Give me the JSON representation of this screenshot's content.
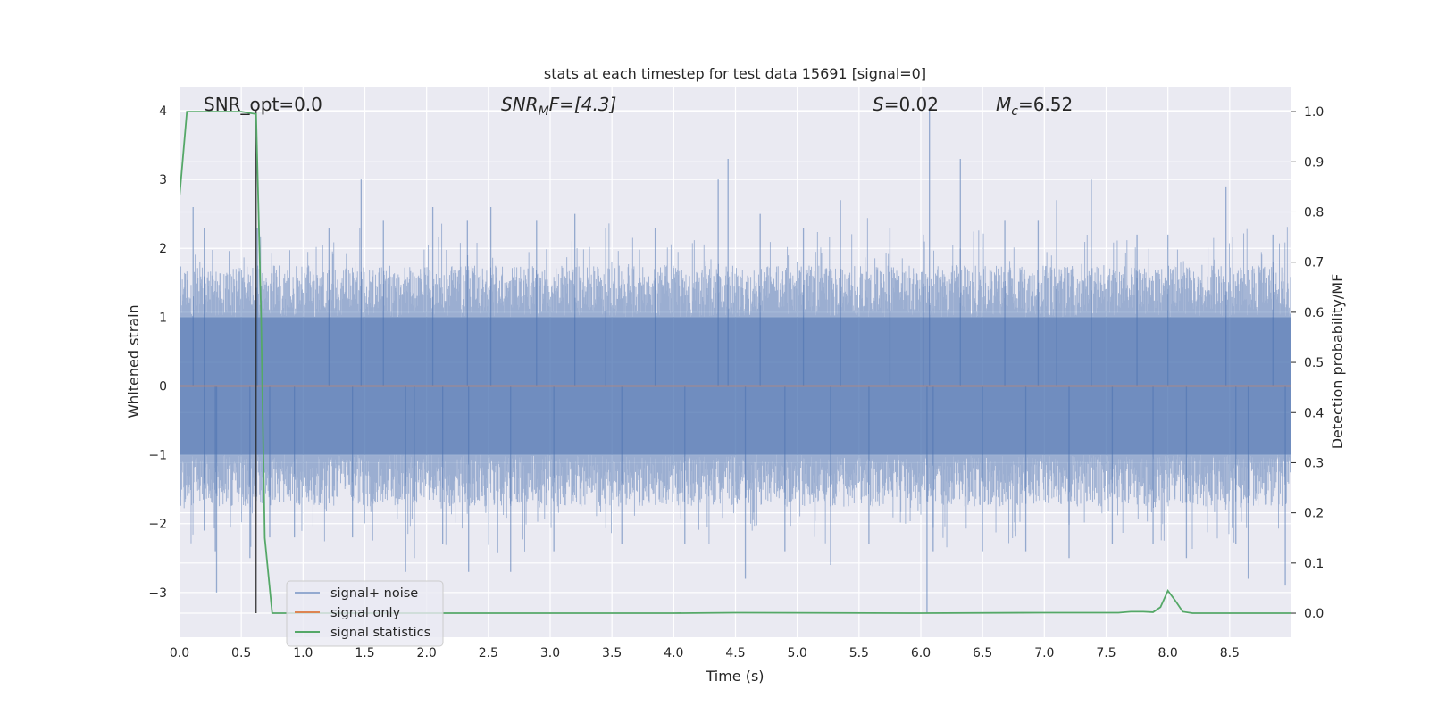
{
  "chart_data": {
    "type": "line",
    "title": "stats at each timestep for test data 15691 [signal=0]",
    "xlabel": "Time (s)",
    "ylabel_left": "Whitened strain",
    "ylabel_right": "Detection probability/MF",
    "xlim": [
      0.0,
      9.0
    ],
    "ylim_left": [
      -3.65,
      4.35
    ],
    "ylim_right": [
      -0.048,
      1.05
    ],
    "x_ticks": [
      "0.0",
      "0.5",
      "1.0",
      "1.5",
      "2.0",
      "2.5",
      "3.0",
      "3.5",
      "4.0",
      "4.5",
      "5.0",
      "5.5",
      "6.0",
      "6.5",
      "7.0",
      "7.5",
      "8.0",
      "8.5"
    ],
    "x_tick_values": [
      0.0,
      0.5,
      1.0,
      1.5,
      2.0,
      2.5,
      3.0,
      3.5,
      4.0,
      4.5,
      5.0,
      5.5,
      6.0,
      6.5,
      7.0,
      7.5,
      8.0,
      8.5
    ],
    "y_left_ticks": [
      "−3",
      "−2",
      "−1",
      "0",
      "1",
      "2",
      "3",
      "4"
    ],
    "y_left_tick_values": [
      -3,
      -2,
      -1,
      0,
      1,
      2,
      3,
      4
    ],
    "y_right_ticks": [
      "0.0",
      "0.1",
      "0.2",
      "0.3",
      "0.4",
      "0.5",
      "0.6",
      "0.7",
      "0.8",
      "0.9",
      "1.0"
    ],
    "y_right_tick_values": [
      0.0,
      0.1,
      0.2,
      0.3,
      0.4,
      0.5,
      0.6,
      0.7,
      0.8,
      0.9,
      1.0
    ],
    "grid": true,
    "legend_position": "lower-left",
    "annotations": {
      "snr_opt": "SNR_opt=0.0",
      "snr_mf_base": "SNR",
      "snr_mf_sub": "M",
      "snr_mf_rest": "F=[4.3]",
      "stat_s_italic": "S",
      "stat_s_rest": "=0.02",
      "mc_base": "M",
      "mc_sub": "c",
      "mc_rest": "=6.52"
    },
    "series": [
      {
        "name": "signal+ noise",
        "axis": "left",
        "color": "#4c72b0",
        "style": "dense noise trace (~9000 samples), amplitude mostly within ±1.8, peaks: 4.0 at t≈6.07, 3.3 at t≈4.44, 3.3 at t≈6.32, −3.3 at t≈6.05, −2.8 at t≈4.58"
      },
      {
        "name": "signal only",
        "axis": "left",
        "color": "#dd8452",
        "x": [
          0.0,
          9.0
        ],
        "y": [
          0.0,
          0.0
        ]
      },
      {
        "name": "signal statistics",
        "axis": "right",
        "color": "#55a868",
        "x": [
          0.0,
          0.06,
          0.12,
          0.5,
          0.62,
          0.66,
          0.69,
          0.75,
          1.0,
          2.0,
          4.0,
          4.5,
          6.0,
          7.0,
          7.6,
          7.7,
          7.8,
          7.88,
          7.94,
          8.0,
          8.06,
          8.12,
          8.2,
          8.5,
          9.0
        ],
        "y": [
          0.83,
          1.0,
          1.0,
          1.0,
          0.995,
          0.6,
          0.15,
          0.0,
          0.0,
          0.0,
          0.0,
          0.001,
          0.0,
          0.001,
          0.001,
          0.003,
          0.003,
          0.002,
          0.012,
          0.045,
          0.025,
          0.003,
          0.0,
          0.0,
          0.0
        ]
      }
    ],
    "vertical_marker": {
      "x": 0.62,
      "y_range": [
        -3.3,
        4.0
      ],
      "color": "#262626"
    },
    "noise_peaks": [
      {
        "t": 0.11,
        "v": 2.6
      },
      {
        "t": 0.2,
        "v": 2.3
      },
      {
        "t": 0.2,
        "v": -2.1
      },
      {
        "t": 0.29,
        "v": -2.4
      },
      {
        "t": 0.3,
        "v": -3.0
      },
      {
        "t": 0.57,
        "v": -2.5
      },
      {
        "t": 0.63,
        "v": 2.3
      },
      {
        "t": 0.73,
        "v": -2.2
      },
      {
        "t": 0.93,
        "v": -2.2
      },
      {
        "t": 1.21,
        "v": 2.3
      },
      {
        "t": 1.4,
        "v": -2.2
      },
      {
        "t": 1.47,
        "v": 3.0
      },
      {
        "t": 1.65,
        "v": 2.4
      },
      {
        "t": 1.83,
        "v": -2.7
      },
      {
        "t": 1.9,
        "v": -2.5
      },
      {
        "t": 2.05,
        "v": 2.6
      },
      {
        "t": 2.13,
        "v": -2.3
      },
      {
        "t": 2.33,
        "v": 2.4
      },
      {
        "t": 2.34,
        "v": -2.7
      },
      {
        "t": 2.52,
        "v": 2.6
      },
      {
        "t": 2.68,
        "v": -2.7
      },
      {
        "t": 2.89,
        "v": 2.4
      },
      {
        "t": 3.03,
        "v": -2.4
      },
      {
        "t": 3.2,
        "v": 2.5
      },
      {
        "t": 3.45,
        "v": 2.3
      },
      {
        "t": 3.58,
        "v": -2.3
      },
      {
        "t": 3.85,
        "v": 2.3
      },
      {
        "t": 4.09,
        "v": -2.3
      },
      {
        "t": 4.36,
        "v": 3.0
      },
      {
        "t": 4.44,
        "v": 3.3
      },
      {
        "t": 4.58,
        "v": -2.8
      },
      {
        "t": 4.7,
        "v": 2.5
      },
      {
        "t": 4.9,
        "v": -2.4
      },
      {
        "t": 5.05,
        "v": 2.3
      },
      {
        "t": 5.27,
        "v": -2.6
      },
      {
        "t": 5.35,
        "v": 2.7
      },
      {
        "t": 5.58,
        "v": -2.3
      },
      {
        "t": 5.75,
        "v": 2.3
      },
      {
        "t": 6.02,
        "v": 2.2
      },
      {
        "t": 6.05,
        "v": -3.3
      },
      {
        "t": 6.07,
        "v": 4.0
      },
      {
        "t": 6.1,
        "v": -2.4
      },
      {
        "t": 6.32,
        "v": 3.3
      },
      {
        "t": 6.5,
        "v": -2.4
      },
      {
        "t": 6.68,
        "v": 2.4
      },
      {
        "t": 6.85,
        "v": -2.4
      },
      {
        "t": 6.95,
        "v": 2.4
      },
      {
        "t": 7.1,
        "v": 2.7
      },
      {
        "t": 7.2,
        "v": -2.5
      },
      {
        "t": 7.38,
        "v": 3.0
      },
      {
        "t": 7.55,
        "v": -2.3
      },
      {
        "t": 7.75,
        "v": 2.2
      },
      {
        "t": 7.88,
        "v": -2.3
      },
      {
        "t": 8.0,
        "v": 2.2
      },
      {
        "t": 8.15,
        "v": -2.5
      },
      {
        "t": 8.47,
        "v": 2.9
      },
      {
        "t": 8.55,
        "v": -2.3
      },
      {
        "t": 8.65,
        "v": -2.8
      },
      {
        "t": 8.85,
        "v": 2.2
      },
      {
        "t": 8.95,
        "v": -2.9
      }
    ]
  }
}
